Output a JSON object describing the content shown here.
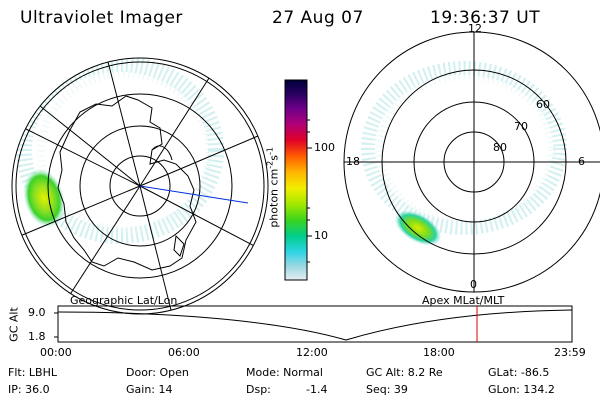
{
  "header": {
    "title": "Ultraviolet Imager",
    "date": "27 Aug 07",
    "time": "19:36:37 UT"
  },
  "left_panel": {
    "caption": "Geographic Lat/Lon"
  },
  "right_panel": {
    "caption": "Apex MLat/MLT",
    "mlt_labels": {
      "top": "12",
      "right": "6",
      "bottom": "0",
      "left": "18"
    },
    "lat_labels": [
      "60",
      "70",
      "80"
    ]
  },
  "colorbar": {
    "unit_label": "photon cm",
    "unit_sup1": "-2",
    "unit_mid": "s",
    "unit_sup2": "-1",
    "ticks": [
      "100",
      "10"
    ],
    "colors": [
      "#00003a",
      "#1a0050",
      "#3c007a",
      "#6a0088",
      "#96009a",
      "#c2006e",
      "#e8002a",
      "#ff3000",
      "#ff7800",
      "#ffbf00",
      "#f6f000",
      "#bff000",
      "#70e000",
      "#1ed22a",
      "#00ce9e",
      "#2ad2e8",
      "#8ed6e2",
      "#d8e6ec"
    ]
  },
  "altitude_strip": {
    "axis_label": "GC Alt",
    "y_labels": [
      "9.0",
      "1.8"
    ],
    "time_ticks": [
      "00:00",
      "06:00",
      "12:00",
      "18:00",
      "23:59"
    ]
  },
  "info": {
    "row1": {
      "flt": "Flt: LBHL",
      "door": "Door: Open",
      "mode": "Mode: Normal",
      "gc_alt": "GC Alt: 8.2 Re",
      "glat": "GLat: -86.5"
    },
    "row2": {
      "ip": "IP: 36.0",
      "gain": "Gain: 14",
      "dsp_label": "Dsp:",
      "dsp_value": "-1.4",
      "seq": "Seq: 39",
      "glon": "GLon: 134.2"
    }
  },
  "colors": {
    "aurora_green": "#3cd22a",
    "aurora_yellow": "#e6f000",
    "aurora_cyan": "#9ee6e6",
    "marker_red": "#e00000",
    "track_blue": "#0030e0"
  }
}
